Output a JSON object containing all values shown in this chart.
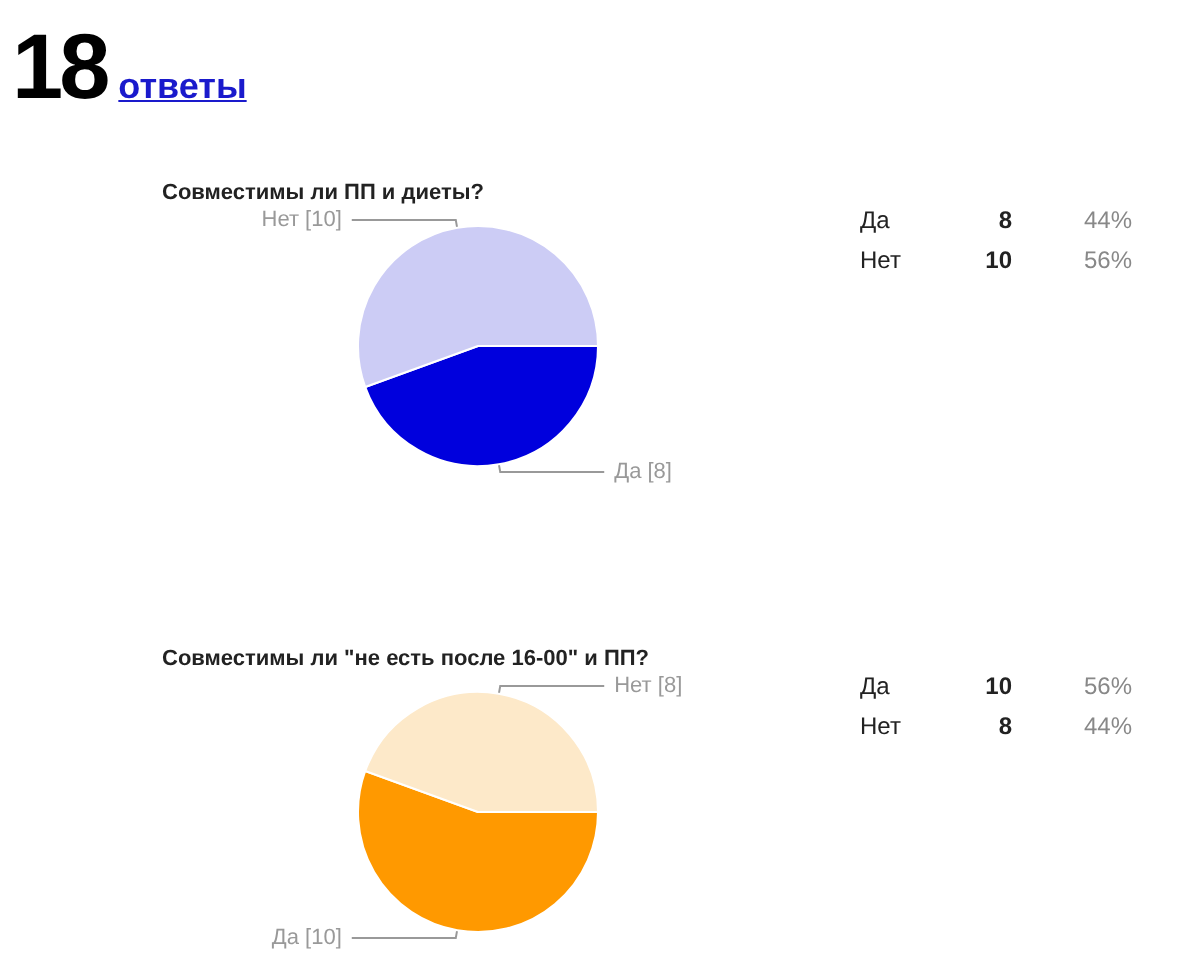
{
  "chart_data": [
    {
      "type": "pie",
      "title": "Совместимы ли ПП и диеты?",
      "annotations": [
        "18",
        "ответы"
      ],
      "categories": [
        "Да",
        "Нет"
      ],
      "values": [
        8,
        10
      ],
      "colors": [
        "#0000dd",
        "#ccccf5"
      ],
      "value_labels": [
        "[8]",
        "[10]"
      ]
    },
    {
      "type": "other",
      "categories": [
        "Да",
        "Нет"
      ],
      "values": [
        8,
        10
      ],
      "data_labels": true,
      "annotations": [
        "44%",
        "56%"
      ]
    },
    {
      "type": "pie",
      "title": "Совместимы ли \"не есть после 16-00\" и ПП?",
      "categories": [
        "Да",
        "Нет"
      ],
      "values": [
        10,
        8
      ],
      "colors": [
        "#ff9900",
        "#fde9c9"
      ],
      "value_labels": [
        "[10]",
        "[8]"
      ]
    },
    {
      "type": "other",
      "categories": [
        "Да",
        "Нет"
      ],
      "values": [
        10,
        8
      ],
      "data_labels": true,
      "annotations": [
        "56%",
        "44%"
      ]
    }
  ]
}
